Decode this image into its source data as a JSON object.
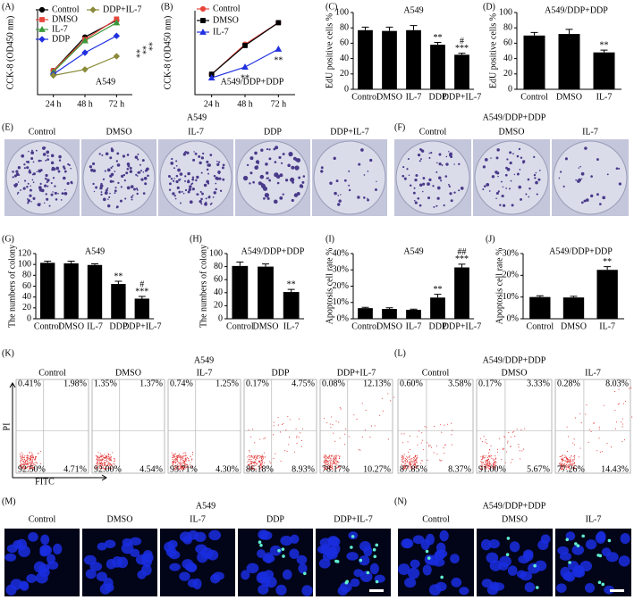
{
  "chart_data": [
    {
      "type": "line",
      "panel_label": "(A)",
      "title": "A549",
      "y_label": "CCK-8 (OD450 nm)",
      "categories": [
        "24 h",
        "48 h",
        "72 h"
      ],
      "ylim": [
        0.2,
        0.9
      ],
      "series": [
        {
          "name": "Control",
          "color": "#000000",
          "marker": "circle",
          "values": [
            0.4,
            0.68,
            0.82
          ]
        },
        {
          "name": "DMSO",
          "color": "#e8453c",
          "marker": "square",
          "values": [
            0.4,
            0.66,
            0.83
          ]
        },
        {
          "name": "IL-7",
          "color": "#3a9a3a",
          "marker": "triangle",
          "values": [
            0.39,
            0.65,
            0.8
          ]
        },
        {
          "name": "DDP",
          "color": "#2030e0",
          "marker": "diamond",
          "values": [
            0.37,
            0.55,
            0.69
          ]
        },
        {
          "name": "DDP+IL-7",
          "color": "#8a8a3a",
          "marker": "diamond",
          "values": [
            0.36,
            0.41,
            0.52
          ]
        }
      ],
      "annotations": [
        "**",
        "**",
        "**"
      ]
    },
    {
      "type": "line",
      "panel_label": "(B)",
      "title": "A549/DDP+DDP",
      "y_label": "CCK-8 (OD450 nm)",
      "categories": [
        "24 h",
        "48 h",
        "72 h"
      ],
      "ylim": [
        0.2,
        0.9
      ],
      "series": [
        {
          "name": "Control",
          "color": "#e8453c",
          "marker": "circle",
          "values": [
            0.37,
            0.62,
            0.8
          ]
        },
        {
          "name": "DMSO",
          "color": "#000000",
          "marker": "square",
          "values": [
            0.37,
            0.61,
            0.8
          ]
        },
        {
          "name": "IL-7",
          "color": "#2030e0",
          "marker": "triangle",
          "values": [
            0.34,
            0.43,
            0.58
          ]
        }
      ],
      "annotations": [
        "**",
        "**"
      ]
    },
    {
      "type": "bar",
      "panel_label": "(C)",
      "title": "A549",
      "y_label": "EdU positive cells %",
      "categories": [
        "Control",
        "DMSO",
        "IL-7",
        "DDP",
        "DDP+IL-7"
      ],
      "values": [
        77,
        76,
        77,
        58,
        45
      ],
      "errors": [
        4,
        5,
        6,
        3,
        2
      ],
      "color": "#000000",
      "ylim": [
        0,
        100
      ],
      "yticks": [
        0,
        20,
        40,
        60,
        80,
        100
      ],
      "value_annotations": [
        [],
        [],
        [],
        [
          "**"
        ],
        [
          "#",
          "***"
        ]
      ]
    },
    {
      "type": "bar",
      "panel_label": "(D)",
      "title": "A549/DDP+DDP",
      "y_label": "EdU positive cells %",
      "categories": [
        "Control",
        "DMSO",
        "IL-7"
      ],
      "values": [
        70,
        72,
        48
      ],
      "errors": [
        4,
        6,
        3
      ],
      "color": "#000000",
      "ylim": [
        0,
        100
      ],
      "yticks": [
        0,
        20,
        40,
        60,
        80,
        100
      ],
      "value_annotations": [
        [],
        [],
        [
          "**"
        ]
      ]
    },
    {
      "type": "bar",
      "panel_label": "(G)",
      "title": "A549",
      "y_label": "The numbers of colony",
      "categories": [
        "Control",
        "DMSO",
        "IL-7",
        "DDP",
        "DDP+IL-7"
      ],
      "values": [
        103,
        102,
        99,
        64,
        37
      ],
      "errors": [
        3,
        4,
        2,
        5,
        4
      ],
      "color": "#000000",
      "ylim": [
        0,
        120
      ],
      "yticks": [
        0,
        20,
        40,
        60,
        80,
        100,
        120
      ],
      "value_annotations": [
        [],
        [],
        [],
        [
          "**"
        ],
        [
          "#",
          "***"
        ]
      ]
    },
    {
      "type": "bar",
      "panel_label": "(H)",
      "title": "A549/DDP+DDP",
      "y_label": "The numbers of colony",
      "categories": [
        "Control",
        "DMSO",
        "IL-7"
      ],
      "values": [
        81,
        80,
        41
      ],
      "errors": [
        6,
        4,
        4
      ],
      "color": "#000000",
      "ylim": [
        0,
        100
      ],
      "yticks": [
        0,
        20,
        40,
        60,
        80,
        100
      ],
      "value_annotations": [
        [],
        [],
        [
          "**"
        ]
      ]
    },
    {
      "type": "bar",
      "panel_label": "(I)",
      "title": "A549",
      "y_label": "Apoptosis cell rate %",
      "categories": [
        "Control",
        "DMSO",
        "IL-7",
        "DDP",
        "DDP+IL-7"
      ],
      "values": [
        6.5,
        6,
        5.5,
        13,
        31.5
      ],
      "errors": [
        0.5,
        0.7,
        0.4,
        2,
        2
      ],
      "color": "#000000",
      "ylim": [
        0,
        40
      ],
      "yticks": [
        {
          "value": 0,
          "label": "0%"
        },
        {
          "value": 10,
          "label": "10%"
        },
        {
          "value": 20,
          "label": "20%"
        },
        {
          "value": 30,
          "label": "30%"
        },
        {
          "value": 40,
          "label": "40%"
        }
      ],
      "value_annotations": [
        [],
        [],
        [],
        [
          "**"
        ],
        [
          "##",
          "***"
        ]
      ]
    },
    {
      "type": "bar",
      "panel_label": "(J)",
      "title": "A549/DDP+DDP",
      "y_label": "Apoptosis cell rate %",
      "categories": [
        "Control",
        "DMSO",
        "IL-7"
      ],
      "values": [
        10,
        9.8,
        22.5
      ],
      "errors": [
        0.6,
        0.5,
        1.5
      ],
      "color": "#000000",
      "ylim": [
        0,
        30
      ],
      "yticks": [
        {
          "value": 0,
          "label": "0%"
        },
        {
          "value": 10,
          "label": "10%"
        },
        {
          "value": 20,
          "label": "20%"
        },
        {
          "value": 30,
          "label": "30%"
        }
      ],
      "value_annotations": [
        [],
        [],
        [
          "**"
        ]
      ]
    }
  ],
  "colony_assay": [
    {
      "panel_label": "(E)",
      "title": "A549",
      "conditions": [
        "Control",
        "DMSO",
        "IL-7",
        "DDP",
        "DDP+IL-7"
      ]
    },
    {
      "panel_label": "(F)",
      "title": "A549/DDP+DDP",
      "conditions": [
        "Control",
        "DMSO",
        "IL-7"
      ]
    }
  ],
  "flow_cytometry": [
    {
      "panel_label": "(K)",
      "title": "A549",
      "x_label": "FITC",
      "y_label": "PI",
      "plots": [
        {
          "condition": "Control",
          "quadrants": [
            "0.41%",
            "1.98%",
            "92.50%",
            "4.71%"
          ]
        },
        {
          "condition": "DMSO",
          "quadrants": [
            "1.35%",
            "1.37%",
            "92.00%",
            "4.54%"
          ]
        },
        {
          "condition": "IL-7",
          "quadrants": [
            "0.74%",
            "1.25%",
            "93.71%",
            "4.30%"
          ]
        },
        {
          "condition": "DDP",
          "quadrants": [
            "0.17%",
            "4.75%",
            "86.18%",
            "8.93%"
          ]
        },
        {
          "condition": "DDP+IL-7",
          "quadrants": [
            "0.08%",
            "12.13%",
            "78.17%",
            "10.27%"
          ]
        }
      ]
    },
    {
      "panel_label": "(L)",
      "title": "A549/DDP+DDP",
      "plots": [
        {
          "condition": "Control",
          "quadrants": [
            "0.60%",
            "3.58%",
            "87.85%",
            "8.37%"
          ]
        },
        {
          "condition": "DMSO",
          "quadrants": [
            "0.17%",
            "3.33%",
            "91.00%",
            "5.67%"
          ]
        },
        {
          "condition": "IL-7",
          "quadrants": [
            "0.28%",
            "8.03%",
            "77.26%",
            "14.43%"
          ]
        }
      ]
    }
  ],
  "tunel": [
    {
      "panel_label": "(M)",
      "title": "A549",
      "conditions": [
        "Control",
        "DMSO",
        "IL-7",
        "DDP",
        "DDP+IL-7"
      ]
    },
    {
      "panel_label": "(N)",
      "title": "A549/DDP+DDP",
      "conditions": [
        "Control",
        "DMSO",
        "IL-7"
      ]
    }
  ]
}
